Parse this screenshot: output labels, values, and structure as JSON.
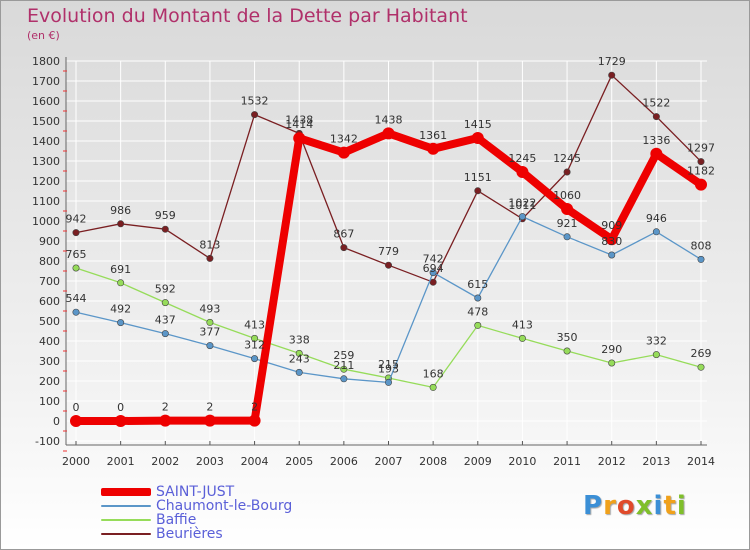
{
  "title": "Evolution du Montant de la Dette par Habitant",
  "subtitle": "(en €)",
  "logo": {
    "letters": [
      "P",
      "r",
      "o",
      "x",
      "i",
      "t",
      "i"
    ],
    "colors": [
      "#3b8fd6",
      "#f0a11b",
      "#e04a2a",
      "#7fbf2a",
      "#3b8fd6",
      "#f0a11b",
      "#7fbf2a"
    ]
  },
  "chart_data": {
    "type": "line",
    "title": "Evolution du Montant de la Dette par Habitant",
    "ylabel": "(en €)",
    "xlabel": "",
    "x": [
      2000,
      2001,
      2002,
      2003,
      2004,
      2005,
      2006,
      2007,
      2008,
      2009,
      2010,
      2011,
      2012,
      2013,
      2014
    ],
    "ylim": [
      -100,
      1800
    ],
    "yticks": [
      -100,
      0,
      100,
      200,
      300,
      400,
      500,
      600,
      700,
      800,
      900,
      1000,
      1100,
      1200,
      1300,
      1400,
      1500,
      1600,
      1700,
      1800
    ],
    "grid": true,
    "legend_position": "bottom-left",
    "series": [
      {
        "name": "Beurières",
        "color": "#7a1f22",
        "values": [
          942,
          986,
          959,
          813,
          1532,
          1438,
          867,
          779,
          694,
          1151,
          1011,
          1245,
          1729,
          1522,
          1297
        ]
      },
      {
        "name": "Baffie",
        "color": "#96dc5a",
        "values": [
          765,
          691,
          592,
          493,
          413,
          338,
          259,
          215,
          168,
          478,
          413,
          350,
          290,
          332,
          269
        ]
      },
      {
        "name": "Chaumont-le-Bourg",
        "color": "#5b96c8",
        "values": [
          544,
          492,
          437,
          377,
          312,
          243,
          211,
          193,
          742,
          615,
          1022,
          921,
          830,
          946,
          808
        ]
      },
      {
        "name": "SAINT-JUST",
        "color": "#ee0000",
        "values": [
          0,
          0,
          2,
          2,
          2,
          1414,
          1342,
          1438,
          1361,
          1415,
          1245,
          1060,
          909,
          1336,
          1182
        ]
      }
    ],
    "legend_order": [
      "SAINT-JUST",
      "Chaumont-le-Bourg",
      "Baffie",
      "Beurières"
    ]
  }
}
